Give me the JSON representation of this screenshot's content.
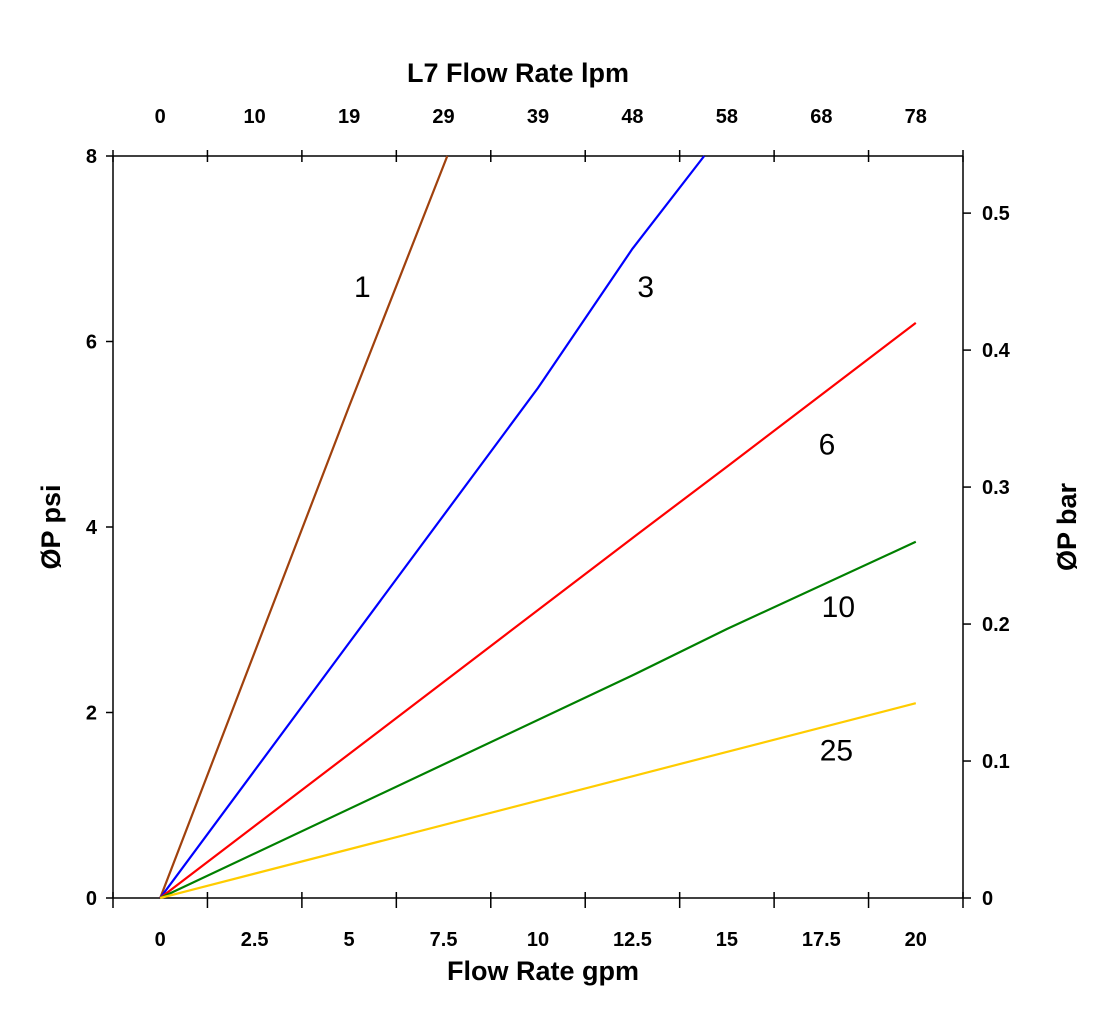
{
  "chart_data": {
    "type": "line",
    "title": "",
    "xlabel": "Flow Rate gpm",
    "x2label": "L7 Flow Rate lpm",
    "ylabel": "ØP psi",
    "y2label": "ØP bar",
    "xlim": [
      -1.25,
      21.25
    ],
    "ylim": [
      0,
      8
    ],
    "y2lim": [
      0,
      0.5417
    ],
    "grid": false,
    "legend": "none (inline curve labels)",
    "x_ticks": [
      "0",
      "2.5",
      "5",
      "7.5",
      "10",
      "12.5",
      "15",
      "17.5",
      "20"
    ],
    "x_tick_values": [
      0,
      2.5,
      5,
      7.5,
      10,
      12.5,
      15,
      17.5,
      20
    ],
    "x2_ticks": [
      "0",
      "10",
      "19",
      "29",
      "39",
      "48",
      "58",
      "68",
      "78"
    ],
    "y_ticks": [
      "0",
      "2",
      "4",
      "6",
      "8"
    ],
    "y_tick_values": [
      0,
      2,
      4,
      6,
      8
    ],
    "y2_ticks": [
      "0",
      "0.1",
      "0.2",
      "0.3",
      "0.4",
      "0.5"
    ],
    "y2_tick_values": [
      0,
      0.1,
      0.2,
      0.3,
      0.4,
      0.5
    ],
    "series": [
      {
        "name": "1",
        "color": "#a0410d",
        "x": [
          0,
          5,
          7.6
        ],
        "y": [
          0,
          5.3,
          8
        ],
        "label_at": [
          5.35,
          6.6
        ]
      },
      {
        "name": "3",
        "color": "#0000ff",
        "x": [
          0,
          5,
          10,
          12.5,
          14.4
        ],
        "y": [
          0,
          2.75,
          5.5,
          7.0,
          8
        ],
        "label_at": [
          12.85,
          6.6
        ]
      },
      {
        "name": "6",
        "color": "#ff0000",
        "x": [
          0,
          12.5,
          15,
          20
        ],
        "y": [
          0,
          3.88,
          4.65,
          6.2
        ],
        "label_at": [
          17.65,
          4.9
        ]
      },
      {
        "name": "10",
        "color": "#008000",
        "x": [
          0,
          12.5,
          15,
          20
        ],
        "y": [
          0,
          2.4,
          2.9,
          3.84
        ],
        "label_at": [
          17.95,
          3.15
        ]
      },
      {
        "name": "25",
        "color": "#ffcc00",
        "x": [
          0,
          20
        ],
        "y": [
          0,
          2.1
        ],
        "label_at": [
          17.9,
          1.6
        ]
      }
    ]
  }
}
